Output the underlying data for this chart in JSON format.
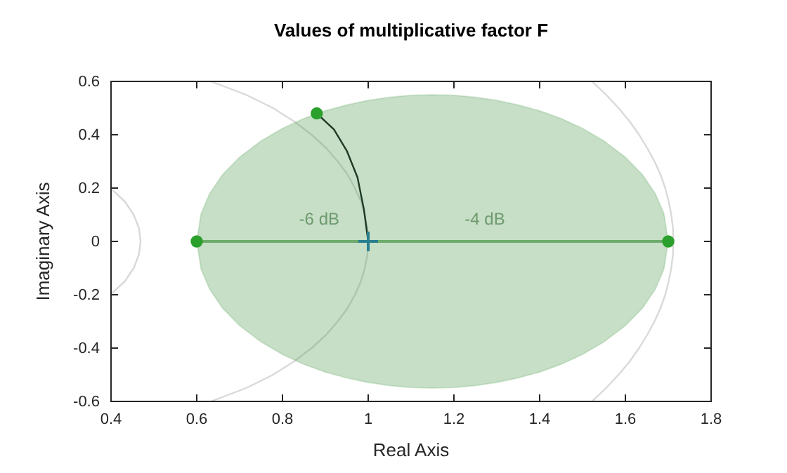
{
  "chart_data": {
    "type": "line",
    "title": "Values of multiplicative factor F",
    "xlabel": "Real Axis",
    "ylabel": "Imaginary Axis",
    "xlim": [
      0.4,
      1.8
    ],
    "ylim": [
      -0.6,
      0.6
    ],
    "xticks": [
      0.4,
      0.6,
      0.8,
      1,
      1.2,
      1.4,
      1.6,
      1.8
    ],
    "yticks": [
      -0.6,
      -0.4,
      -0.2,
      0,
      0.2,
      0.4,
      0.6
    ],
    "grid": false,
    "annotations": [
      "-6 dB",
      "-4 dB"
    ],
    "series": [
      {
        "color": "#d9d9d9",
        "x": [
          0.4,
          0.432,
          0.453,
          0.465,
          0.469,
          0.465,
          0.453,
          0.432,
          0.4
        ],
        "values": [
          -0.198,
          -0.15,
          -0.1,
          -0.05,
          0,
          0.05,
          0.1,
          0.15,
          0.198
        ]
      },
      {
        "color": "#d9d9d9",
        "x": [
          0.633,
          0.715,
          0.778,
          0.827,
          0.868,
          0.902,
          0.929,
          0.952,
          0.969,
          0.983,
          0.992,
          0.998,
          1.0,
          0.998,
          0.992,
          0.983,
          0.969,
          0.952,
          0.929,
          0.902,
          0.868,
          0.827,
          0.778,
          0.715,
          0.633
        ],
        "values": [
          -0.6,
          -0.55,
          -0.5,
          -0.45,
          -0.4,
          -0.35,
          -0.3,
          -0.25,
          -0.2,
          -0.15,
          -0.1,
          -0.05,
          0,
          0.05,
          0.1,
          0.15,
          0.2,
          0.25,
          0.3,
          0.35,
          0.4,
          0.45,
          0.5,
          0.55,
          0.6
        ]
      },
      {
        "color": "#d9d9d9",
        "x": [
          1.522,
          1.555,
          1.584,
          1.61,
          1.632,
          1.651,
          1.668,
          1.682,
          1.693,
          1.701,
          1.707,
          1.711,
          1.712,
          1.711,
          1.707,
          1.701,
          1.693,
          1.682,
          1.668,
          1.651,
          1.632,
          1.61,
          1.584,
          1.555,
          1.522
        ],
        "values": [
          -0.6,
          -0.55,
          -0.5,
          -0.45,
          -0.4,
          -0.35,
          -0.3,
          -0.25,
          -0.2,
          -0.15,
          -0.1,
          -0.05,
          0,
          0.05,
          0.1,
          0.15,
          0.2,
          0.25,
          0.3,
          0.35,
          0.4,
          0.45,
          0.5,
          0.55,
          0.6
        ]
      },
      {
        "color": "#4f9a4f",
        "x": [
          0.6,
          0.61,
          0.63,
          0.66,
          0.7,
          0.75,
          0.8,
          0.85,
          0.9,
          0.95,
          1.0,
          1.05,
          1.1,
          1.15,
          1.2,
          1.25,
          1.3,
          1.35,
          1.4,
          1.45,
          1.5,
          1.55,
          1.6,
          1.64,
          1.67,
          1.69,
          1.7
        ],
        "values": [
          0,
          0,
          0,
          0,
          0,
          0,
          0,
          0,
          0,
          0,
          0,
          0,
          0,
          0,
          0,
          0,
          0,
          0,
          0,
          0,
          0,
          0,
          0,
          0,
          0,
          0,
          0
        ],
        "lower": [
          0,
          -0.104,
          -0.179,
          -0.25,
          -0.316,
          -0.377,
          -0.424,
          -0.461,
          -0.49,
          -0.512,
          -0.529,
          -0.541,
          -0.548,
          -0.55,
          -0.548,
          -0.541,
          -0.529,
          -0.512,
          -0.49,
          -0.461,
          -0.424,
          -0.377,
          -0.316,
          -0.25,
          -0.179,
          -0.104,
          0
        ],
        "upper": [
          0,
          0.104,
          0.179,
          0.25,
          0.316,
          0.377,
          0.424,
          0.461,
          0.49,
          0.512,
          0.529,
          0.541,
          0.548,
          0.55,
          0.548,
          0.541,
          0.529,
          0.512,
          0.49,
          0.461,
          0.424,
          0.377,
          0.316,
          0.25,
          0.179,
          0.104,
          0
        ]
      },
      {
        "color": "#1e3a26",
        "x": [
          0.88,
          0.92,
          0.95,
          0.975,
          0.99,
          1.0
        ],
        "values": [
          0.48,
          0.42,
          0.34,
          0.24,
          0.12,
          0
        ]
      },
      {
        "type": "scatter",
        "color": "#2ca02c",
        "marker": "circle",
        "x": [
          0.6,
          1.7,
          0.88
        ],
        "values": [
          0,
          0,
          0.48
        ]
      },
      {
        "type": "scatter",
        "color": "#2a7f8f",
        "marker": "cross",
        "x": [
          1
        ],
        "values": [
          0
        ]
      }
    ]
  }
}
